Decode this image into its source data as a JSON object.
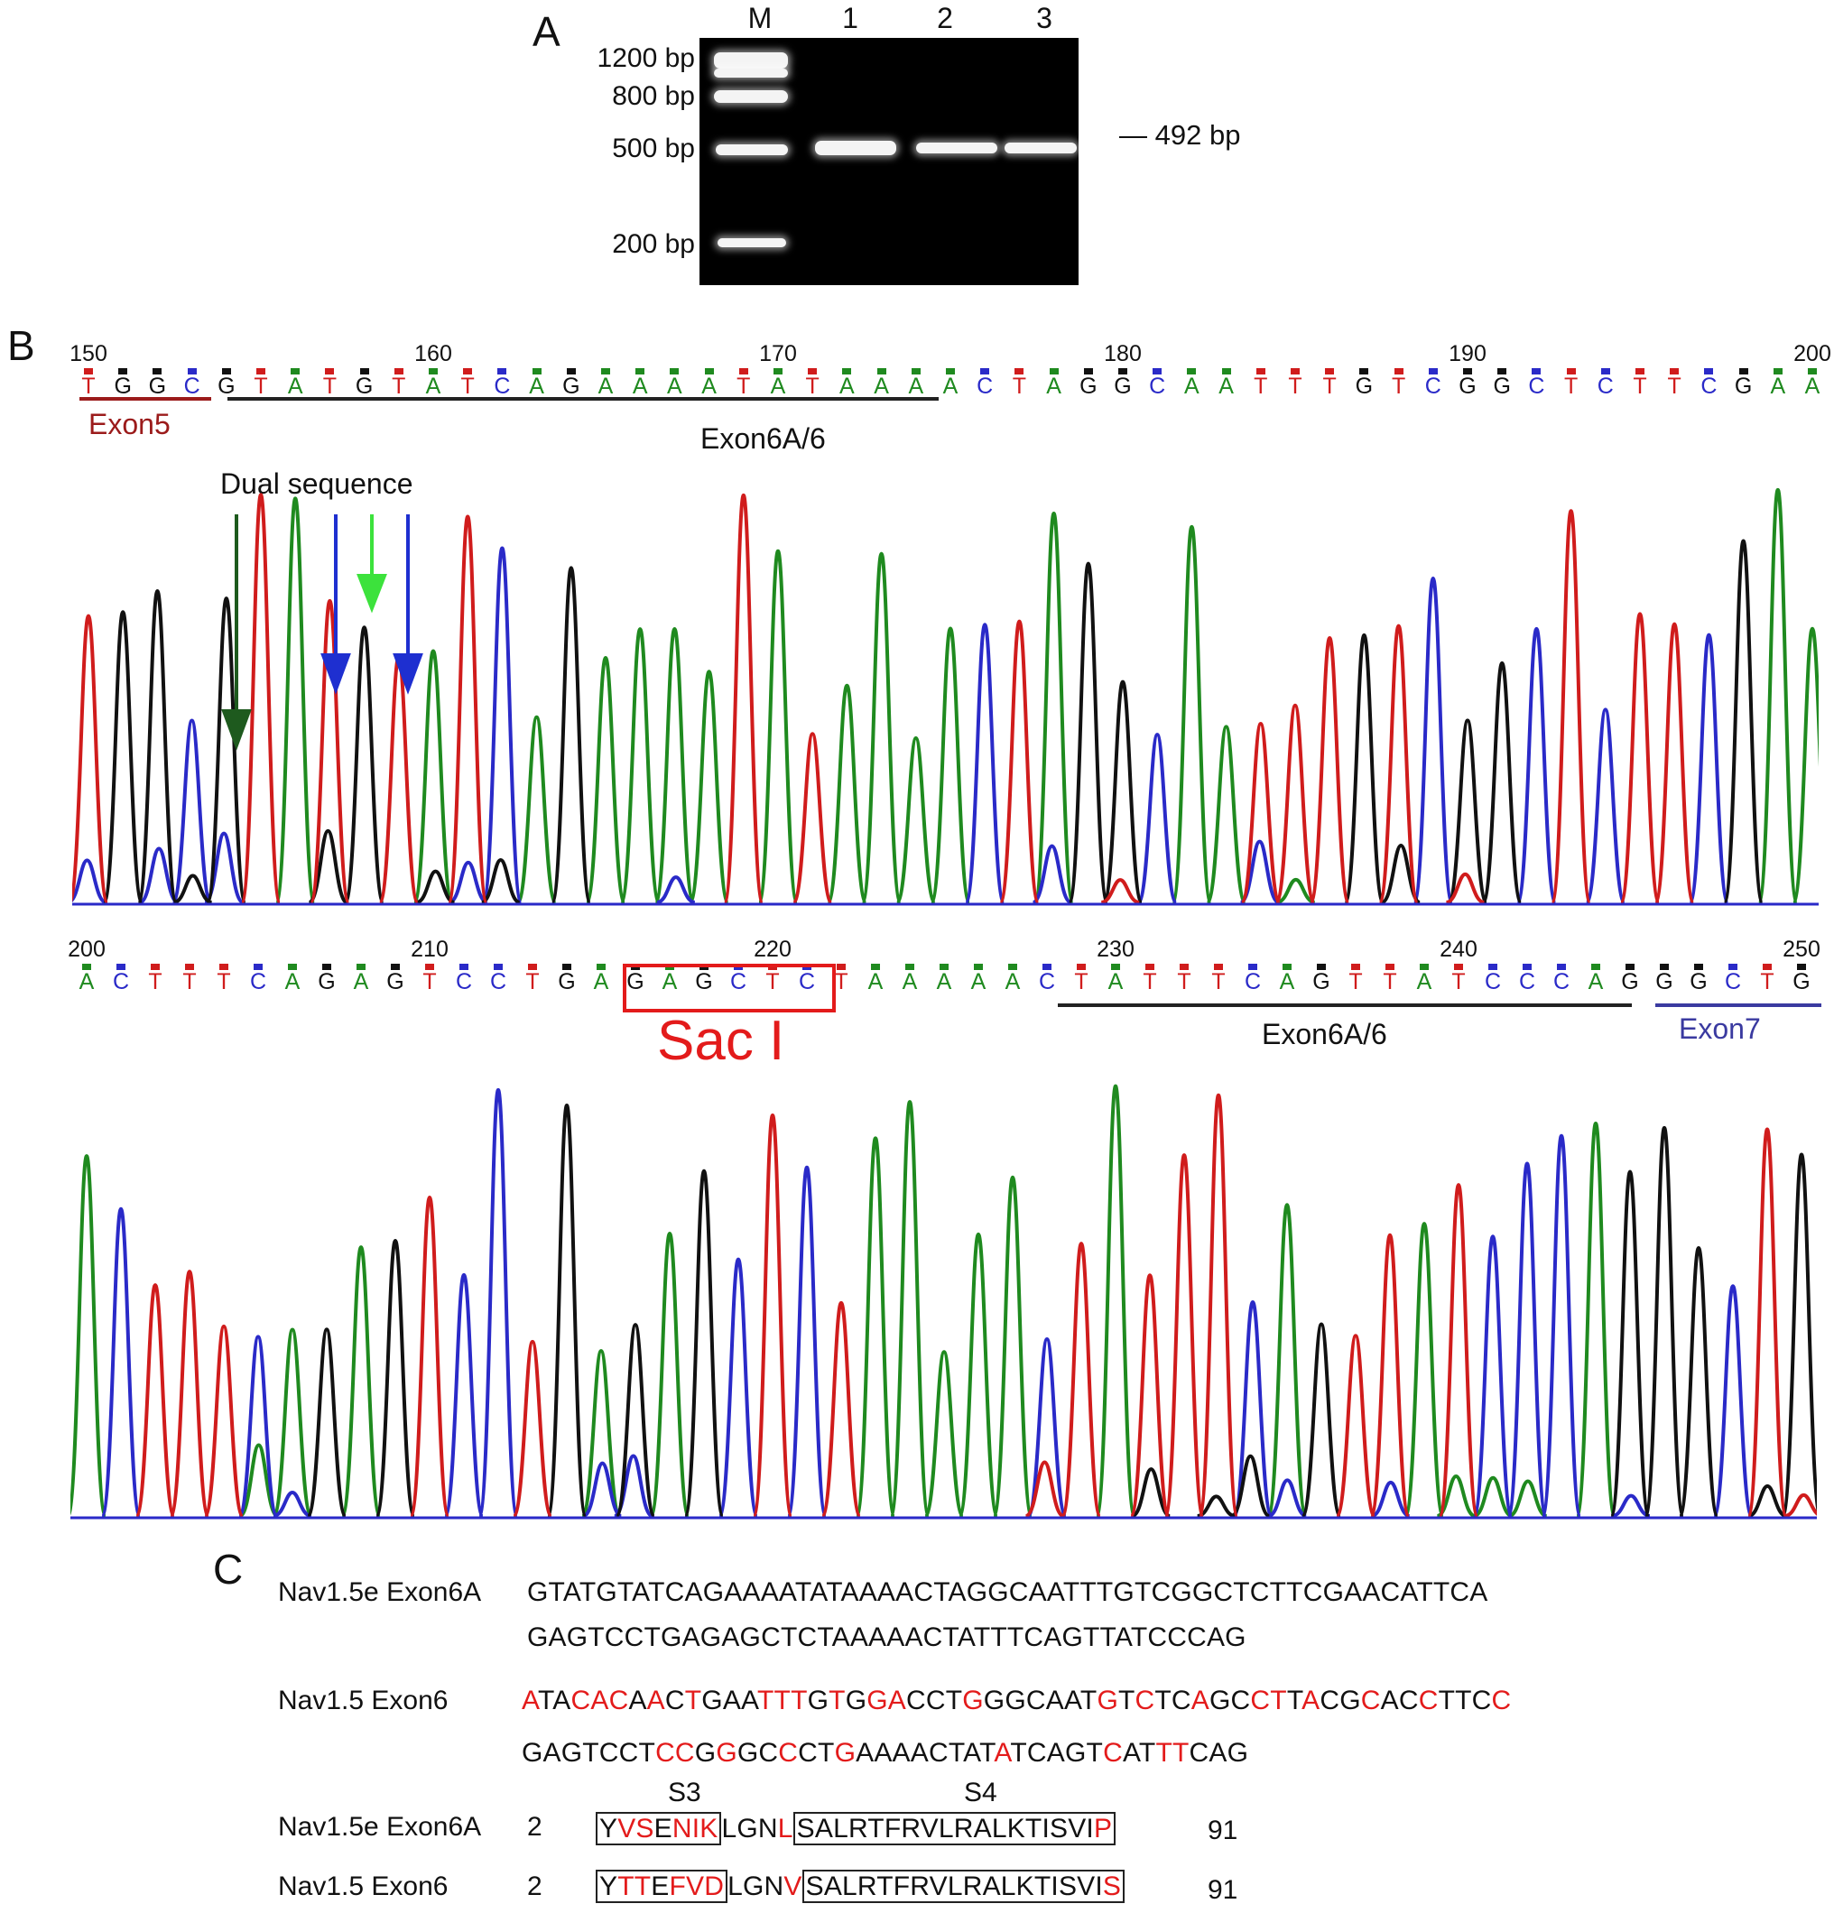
{
  "panelA": {
    "letter": "A",
    "lanes": [
      "M",
      "1",
      "2",
      "3"
    ],
    "ladder": [
      "1200 bp",
      "800 bp",
      "500 bp",
      "200 bp"
    ],
    "product_size": "492 bp"
  },
  "panelB": {
    "letter": "B",
    "row1": {
      "positions": [
        "150",
        "160",
        "170",
        "180",
        "190",
        "200"
      ],
      "bases": "TGGCGTATGTATCAGAAAATATAAAACTAGGCAATTTGTCGGCTCTTCGAA",
      "labels": {
        "exon5": "Exon5",
        "exon6": "Exon6A/6",
        "dual": "Dual sequence"
      }
    },
    "row2": {
      "positions": [
        "200",
        "210",
        "220",
        "230",
        "240",
        "250"
      ],
      "bases": "ACTTTCAGAGTCCTGAGAGCTCTAAAAACTATTTCAGTTATCCCAGGGCTG",
      "labels": {
        "exon6": "Exon6A/6",
        "exon7": "Exon7",
        "site": "Sac I"
      }
    },
    "colors": {
      "A": "#1f8a1f",
      "C": "#2a2ac8",
      "G": "#111111",
      "T": "#d01c1c",
      "exon5": "#9b1b1b",
      "exon7": "#3a3aa0",
      "site": "#e31b1b"
    }
  },
  "panelC": {
    "letter": "C",
    "exon6a_label": "Nav1.5e Exon6A",
    "exon6a_line1": "GTATGTATCAGAAAATATAAAACTAGGCAATTTGTCGGCTCTTCGAACATTCA",
    "exon6a_line2": "GAGTCCTGAGAGCTCTAAAAACTATTTCAGTTATCCCAG",
    "exon6_label": "Nav1.5 Exon6",
    "exon6_line1_segments": [
      {
        "t": "A",
        "r": true
      },
      {
        "t": "TA",
        "r": false
      },
      {
        "t": "CAC",
        "r": true
      },
      {
        "t": "A",
        "r": false
      },
      {
        "t": "A",
        "r": true
      },
      {
        "t": "C",
        "r": false
      },
      {
        "t": "T",
        "r": true
      },
      {
        "t": "GAA",
        "r": false
      },
      {
        "t": "TTT",
        "r": true
      },
      {
        "t": "G",
        "r": false
      },
      {
        "t": "T",
        "r": true
      },
      {
        "t": "G",
        "r": false
      },
      {
        "t": "GA",
        "r": true
      },
      {
        "t": "CCT",
        "r": false
      },
      {
        "t": "G",
        "r": true
      },
      {
        "t": "GGCAAT",
        "r": false
      },
      {
        "t": "G",
        "r": true
      },
      {
        "t": "T",
        "r": false
      },
      {
        "t": "C",
        "r": true
      },
      {
        "t": "TC",
        "r": false
      },
      {
        "t": "A",
        "r": true
      },
      {
        "t": "GC",
        "r": false
      },
      {
        "t": "CT",
        "r": true
      },
      {
        "t": "T",
        "r": false
      },
      {
        "t": "A",
        "r": true
      },
      {
        "t": "CG",
        "r": false
      },
      {
        "t": "C",
        "r": true
      },
      {
        "t": "AC",
        "r": false
      },
      {
        "t": "C",
        "r": true
      },
      {
        "t": "TTC",
        "r": false
      },
      {
        "t": "C",
        "r": true
      }
    ],
    "exon6_line2_segments": [
      {
        "t": "GAGTCCT",
        "r": false
      },
      {
        "t": "CC",
        "r": true
      },
      {
        "t": "G",
        "r": false
      },
      {
        "t": "G",
        "r": true
      },
      {
        "t": "GC",
        "r": false
      },
      {
        "t": "C",
        "r": true
      },
      {
        "t": "CT",
        "r": false
      },
      {
        "t": "G",
        "r": true
      },
      {
        "t": "AAAACTAT",
        "r": false
      },
      {
        "t": "A",
        "r": true
      },
      {
        "t": "TCAGT",
        "r": false
      },
      {
        "t": "C",
        "r": true
      },
      {
        "t": "AT",
        "r": false
      },
      {
        "t": "TT",
        "r": true
      },
      {
        "t": "CAG",
        "r": false
      }
    ],
    "s3": "S3",
    "s4": "S4",
    "prot_a_label": "Nav1.5e Exon6A",
    "prot_a_start": "2",
    "prot_a_end": "91",
    "prot_a_box1": [
      {
        "t": "Y",
        "r": false
      },
      {
        "t": "VS",
        "r": true
      },
      {
        "t": "E",
        "r": false
      },
      {
        "t": "NIK",
        "r": true
      }
    ],
    "prot_a_mid": [
      {
        "t": "LGN",
        "r": false
      },
      {
        "t": "L",
        "r": true
      }
    ],
    "prot_a_box2": [
      {
        "t": "SALRTFRVLRALKTISVI",
        "r": false
      },
      {
        "t": "P",
        "r": true
      }
    ],
    "prot_b_label": "Nav1.5 Exon6",
    "prot_b_start": "2",
    "prot_b_end": "91",
    "prot_b_box1": [
      {
        "t": "Y",
        "r": false
      },
      {
        "t": "TT",
        "r": true
      },
      {
        "t": "E",
        "r": false
      },
      {
        "t": "FVD",
        "r": true
      }
    ],
    "prot_b_mid": [
      {
        "t": "LGN",
        "r": false
      },
      {
        "t": "V",
        "r": true
      }
    ],
    "prot_b_box2": [
      {
        "t": "SALRTFRVLRALKTISVI",
        "r": false
      },
      {
        "t": "S",
        "r": true
      }
    ]
  }
}
